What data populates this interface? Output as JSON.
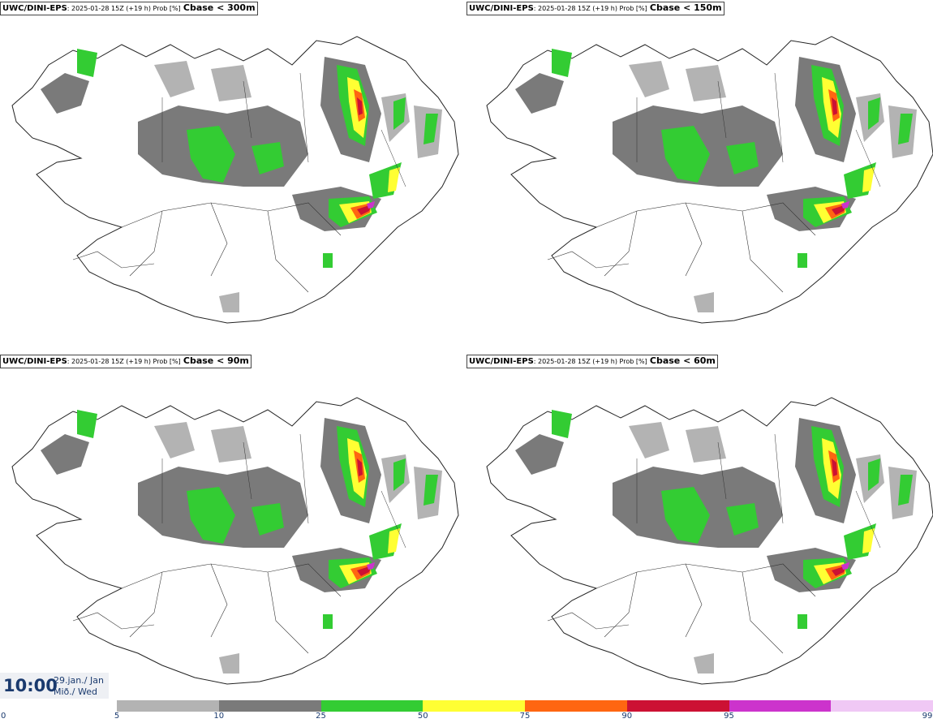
{
  "panels": [
    {
      "source": "UWC/DINI-EPS",
      "meta": ": 2025-01-28 15Z (+19 h) Prob [%]",
      "variable": "Cbase < 300m"
    },
    {
      "source": "UWC/DINI-EPS",
      "meta": ": 2025-01-28 15Z (+19 h) Prob [%]",
      "variable": "Cbase < 150m"
    },
    {
      "source": "UWC/DINI-EPS",
      "meta": ": 2025-01-28 15Z (+19 h) Prob [%]",
      "variable": "Cbase < 90m"
    },
    {
      "source": "UWC/DINI-EPS",
      "meta": ": 2025-01-28 15Z (+19 h) Prob [%]",
      "variable": "Cbase < 60m"
    }
  ],
  "valid_time": {
    "time": "10:00",
    "date": "29.jan./ Jan",
    "day": "Mið./ Wed"
  },
  "colorbar": {
    "ticks": [
      "0",
      "5",
      "10",
      "25",
      "50",
      "75",
      "90",
      "95",
      "99"
    ],
    "colors": [
      "#b3b3b3",
      "#7a7a7a",
      "#33cc33",
      "#ffff33",
      "#ff6611",
      "#cc1133",
      "#cc33cc",
      "#f0c8f5"
    ]
  }
}
